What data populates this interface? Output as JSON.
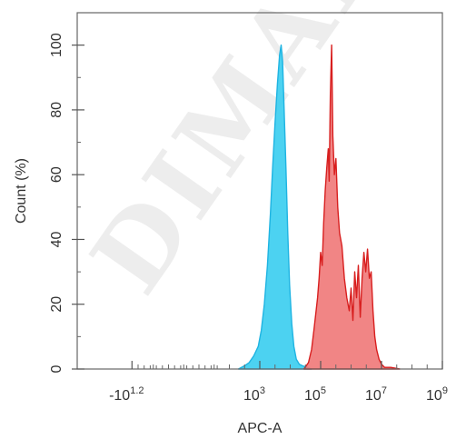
{
  "watermark": {
    "text": "DIMABI"
  },
  "chart_data": {
    "type": "area",
    "title": "",
    "xlabel": "APC-A",
    "ylabel": "Count (%)",
    "x_scale": "log",
    "xlim": [
      -3,
      9
    ],
    "ylim": [
      0,
      110
    ],
    "grid": false,
    "legend": "none",
    "x_tick_labels": [
      {
        "pos": -1.2,
        "base": "-10",
        "exp": "1.2"
      },
      {
        "pos": 3,
        "base": "10",
        "exp": "3"
      },
      {
        "pos": 5,
        "base": "10",
        "exp": "5"
      },
      {
        "pos": 7,
        "base": "10",
        "exp": "7"
      },
      {
        "pos": 9,
        "base": "10",
        "exp": "9"
      }
    ],
    "y_ticks": [
      0,
      20,
      40,
      60,
      80,
      100
    ],
    "series": [
      {
        "fill": "#39cdf0",
        "stroke": "#1fb4e2",
        "x": [
          2.3,
          2.5,
          2.65,
          2.8,
          2.95,
          3.05,
          3.15,
          3.25,
          3.35,
          3.42,
          3.5,
          3.58,
          3.65,
          3.7,
          3.75,
          3.8,
          3.86,
          3.92,
          3.98,
          4.05,
          4.12,
          4.2,
          4.3,
          4.4,
          4.55,
          4.7
        ],
        "values": [
          0,
          1,
          2,
          4,
          7,
          12,
          20,
          32,
          48,
          62,
          76,
          88,
          97,
          100,
          95,
          80,
          62,
          42,
          26,
          14,
          7,
          3,
          1.5,
          1,
          0.5,
          0
        ]
      },
      {
        "fill": "#f07878",
        "stroke": "#d81f1f",
        "x": [
          4.45,
          4.6,
          4.7,
          4.78,
          4.85,
          4.9,
          4.95,
          5.0,
          5.05,
          5.1,
          5.15,
          5.2,
          5.25,
          5.28,
          5.32,
          5.36,
          5.4,
          5.45,
          5.5,
          5.56,
          5.62,
          5.7,
          5.78,
          5.86,
          5.94,
          6.0,
          6.06,
          6.12,
          6.18,
          6.24,
          6.3,
          6.36,
          6.42,
          6.48,
          6.54,
          6.6,
          6.66,
          6.72,
          6.78,
          6.84,
          6.92,
          7.0,
          7.1,
          7.3,
          7.6
        ],
        "values": [
          0,
          2,
          6,
          12,
          18,
          22,
          28,
          36,
          32,
          45,
          55,
          62,
          68,
          58,
          85,
          100,
          72,
          60,
          65,
          50,
          42,
          38,
          28,
          22,
          18,
          25,
          15,
          30,
          22,
          32,
          16,
          28,
          36,
          30,
          37,
          28,
          30,
          18,
          10,
          6,
          3,
          1.5,
          0.5,
          0.5,
          0
        ]
      }
    ]
  }
}
